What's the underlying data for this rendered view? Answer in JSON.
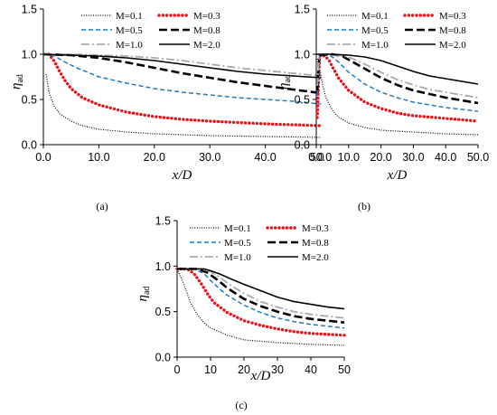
{
  "chart_data": [
    {
      "type": "line",
      "panel_label": "(a)",
      "xlabel": "x/D",
      "ylabel": "η",
      "ylabel_subscript": "ad",
      "xlim": [
        0,
        50
      ],
      "ylim": [
        0,
        1.5
      ],
      "xticks": [
        "0.0",
        "10.0",
        "20.0",
        "30.0",
        "40.0",
        "50.0"
      ],
      "yticks": [
        "0.0",
        "0.5",
        "1.0",
        "1.5"
      ],
      "grid": false,
      "legend_position": "top",
      "series": [
        {
          "name": "M=0.1",
          "style": "dotted",
          "color": "#000000",
          "x": [
            0.5,
            1,
            2,
            3,
            5,
            7,
            10,
            15,
            20,
            30,
            40,
            50
          ],
          "y": [
            0.78,
            0.58,
            0.42,
            0.34,
            0.26,
            0.21,
            0.17,
            0.14,
            0.12,
            0.1,
            0.09,
            0.08
          ]
        },
        {
          "name": "M=0.3",
          "style": "round-dot",
          "color": "#e8131b",
          "x": [
            1,
            2,
            3,
            4,
            5,
            7,
            10,
            15,
            20,
            25,
            30,
            40,
            50
          ],
          "y": [
            1.0,
            0.92,
            0.8,
            0.7,
            0.62,
            0.52,
            0.44,
            0.36,
            0.31,
            0.28,
            0.26,
            0.23,
            0.21
          ]
        },
        {
          "name": "M=0.5",
          "style": "dashed",
          "color": "#1f7bc1",
          "x": [
            0,
            2,
            4,
            6,
            8,
            10,
            15,
            20,
            25,
            30,
            35,
            40,
            45,
            50
          ],
          "y": [
            1.0,
            0.98,
            0.91,
            0.85,
            0.8,
            0.75,
            0.68,
            0.62,
            0.58,
            0.55,
            0.52,
            0.5,
            0.48,
            0.45
          ]
        },
        {
          "name": "M=0.8",
          "style": "long-dash",
          "color": "#000000",
          "x": [
            0,
            5,
            10,
            15,
            20,
            25,
            30,
            35,
            40,
            45,
            50
          ],
          "y": [
            1.0,
            0.99,
            0.96,
            0.91,
            0.85,
            0.79,
            0.74,
            0.69,
            0.65,
            0.61,
            0.57
          ]
        },
        {
          "name": "M=1.0",
          "style": "dash-dot",
          "color": "#a9a9a9",
          "x": [
            0,
            5,
            10,
            15,
            20,
            25,
            30,
            35,
            40,
            45,
            50
          ],
          "y": [
            1.0,
            1.0,
            0.99,
            0.98,
            0.96,
            0.93,
            0.89,
            0.85,
            0.82,
            0.79,
            0.76
          ]
        },
        {
          "name": "M=2.0",
          "style": "solid",
          "color": "#000000",
          "x": [
            0,
            5,
            10,
            15,
            20,
            25,
            30,
            35,
            40,
            45,
            50
          ],
          "y": [
            1.0,
            0.99,
            0.98,
            0.96,
            0.93,
            0.89,
            0.85,
            0.81,
            0.78,
            0.76,
            0.74
          ]
        }
      ]
    },
    {
      "type": "line",
      "panel_label": "(b)",
      "xlabel": "x/D",
      "ylabel": "η",
      "ylabel_subscript": "ad",
      "xlim": [
        0,
        50
      ],
      "ylim": [
        0,
        1.5
      ],
      "xticks": [
        "0.0",
        "10.0",
        "20.0",
        "30.0",
        "40.0",
        "50.0"
      ],
      "yticks": [
        "0.0",
        "0.5",
        "1.0",
        "1.5"
      ],
      "grid": false,
      "legend_position": "top",
      "series": [
        {
          "name": "M=0.1",
          "style": "dotted",
          "color": "#000000",
          "x": [
            0.3,
            1,
            2,
            3,
            5,
            7,
            10,
            15,
            20,
            30,
            40,
            50
          ],
          "y": [
            0.95,
            0.85,
            0.65,
            0.52,
            0.38,
            0.3,
            0.24,
            0.19,
            0.16,
            0.14,
            0.12,
            0.11
          ]
        },
        {
          "name": "M=0.3",
          "style": "round-dot",
          "color": "#e8131b",
          "x": [
            0.3,
            1,
            2,
            3,
            4,
            5,
            7,
            10,
            15,
            20,
            25,
            30,
            40,
            50
          ],
          "y": [
            0.3,
            0.98,
            0.99,
            0.97,
            0.93,
            0.86,
            0.73,
            0.6,
            0.47,
            0.4,
            0.35,
            0.32,
            0.29,
            0.26
          ]
        },
        {
          "name": "M=0.5",
          "style": "dashed",
          "color": "#1f7bc1",
          "x": [
            0.3,
            1,
            3,
            5,
            7,
            10,
            15,
            20,
            25,
            30,
            35,
            40,
            50
          ],
          "y": [
            0.55,
            0.99,
            1.0,
            0.97,
            0.91,
            0.8,
            0.67,
            0.58,
            0.52,
            0.47,
            0.44,
            0.41,
            0.37
          ]
        },
        {
          "name": "M=0.8",
          "style": "long-dash",
          "color": "#000000",
          "x": [
            0.3,
            1,
            5,
            8,
            10,
            15,
            20,
            25,
            30,
            35,
            40,
            45,
            50
          ],
          "y": [
            0.6,
            0.99,
            1.0,
            0.98,
            0.94,
            0.84,
            0.74,
            0.66,
            0.6,
            0.56,
            0.52,
            0.49,
            0.46
          ]
        },
        {
          "name": "M=1.0",
          "style": "dash-dot",
          "color": "#a9a9a9",
          "x": [
            0.3,
            1,
            5,
            10,
            15,
            20,
            25,
            30,
            35,
            40,
            45,
            50
          ],
          "y": [
            0.65,
            1.0,
            1.0,
            0.97,
            0.89,
            0.8,
            0.72,
            0.66,
            0.61,
            0.58,
            0.55,
            0.52
          ]
        },
        {
          "name": "M=2.0",
          "style": "solid",
          "color": "#000000",
          "x": [
            0,
            5,
            10,
            15,
            20,
            25,
            30,
            35,
            40,
            45,
            50
          ],
          "y": [
            1.0,
            1.0,
            0.99,
            0.97,
            0.93,
            0.87,
            0.81,
            0.76,
            0.73,
            0.7,
            0.67
          ]
        }
      ]
    },
    {
      "type": "line",
      "panel_label": "(c)",
      "xlabel": "x/D",
      "ylabel": "η",
      "ylabel_subscript": "ad",
      "xlim": [
        0,
        50
      ],
      "ylim": [
        0,
        1.5
      ],
      "xticks": [
        "0",
        "10",
        "20",
        "30",
        "40",
        "50"
      ],
      "yticks": [
        "0.0",
        "0.5",
        "1.0",
        "1.5"
      ],
      "grid": false,
      "legend_position": "top",
      "series": [
        {
          "name": "M=0.1",
          "style": "dotted",
          "color": "#000000",
          "x": [
            0,
            2,
            4,
            6,
            8,
            10,
            15,
            20,
            30,
            40,
            50
          ],
          "y": [
            0.97,
            0.8,
            0.6,
            0.47,
            0.38,
            0.32,
            0.24,
            0.19,
            0.16,
            0.14,
            0.13
          ]
        },
        {
          "name": "M=0.3",
          "style": "round-dot",
          "color": "#e8131b",
          "x": [
            0,
            3,
            5,
            7,
            9,
            11,
            15,
            20,
            25,
            30,
            35,
            40,
            45,
            50
          ],
          "y": [
            0.97,
            0.97,
            0.92,
            0.82,
            0.7,
            0.6,
            0.49,
            0.4,
            0.35,
            0.31,
            0.28,
            0.26,
            0.25,
            0.24
          ]
        },
        {
          "name": "M=0.5",
          "style": "dashed",
          "color": "#1f7bc1",
          "x": [
            0,
            5,
            8,
            10,
            13,
            15,
            20,
            25,
            30,
            35,
            40,
            45,
            50
          ],
          "y": [
            0.97,
            0.97,
            0.92,
            0.84,
            0.74,
            0.68,
            0.57,
            0.49,
            0.43,
            0.39,
            0.36,
            0.34,
            0.32
          ]
        },
        {
          "name": "M=0.8",
          "style": "long-dash",
          "color": "#000000",
          "x": [
            0,
            6,
            9,
            12,
            15,
            20,
            25,
            30,
            35,
            40,
            45,
            50
          ],
          "y": [
            0.97,
            0.97,
            0.93,
            0.85,
            0.76,
            0.64,
            0.56,
            0.5,
            0.45,
            0.42,
            0.4,
            0.38
          ]
        },
        {
          "name": "M=1.0",
          "style": "dash-dot",
          "color": "#a9a9a9",
          "x": [
            0,
            7,
            10,
            13,
            16,
            20,
            25,
            30,
            35,
            40,
            45,
            50
          ],
          "y": [
            0.97,
            0.97,
            0.94,
            0.87,
            0.79,
            0.7,
            0.61,
            0.55,
            0.5,
            0.47,
            0.45,
            0.43
          ]
        },
        {
          "name": "M=2.0",
          "style": "solid",
          "color": "#000000",
          "x": [
            0,
            8,
            10,
            13,
            16,
            20,
            25,
            30,
            35,
            40,
            45,
            50
          ],
          "y": [
            0.97,
            0.97,
            0.95,
            0.91,
            0.86,
            0.8,
            0.73,
            0.66,
            0.61,
            0.58,
            0.55,
            0.53
          ]
        }
      ]
    }
  ]
}
